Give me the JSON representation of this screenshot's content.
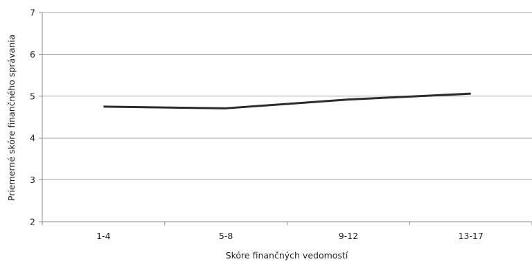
{
  "chart_data": {
    "type": "line",
    "title": "",
    "xlabel": "Skóre finančných vedomostí",
    "ylabel": "Priemerné skóre finančného správania",
    "categories": [
      "1-4",
      "5-8",
      "9-12",
      "13-17"
    ],
    "series": [
      {
        "values": [
          4.75,
          4.71,
          4.92,
          5.06
        ]
      }
    ],
    "ylim": [
      2,
      7
    ],
    "yticks": [
      "2",
      "3",
      "4",
      "5",
      "6",
      "7"
    ],
    "grid": "horizontal",
    "legend": "none",
    "colors": {
      "line": "#2b2b2b",
      "grid": "#a6a6a6",
      "axis": "#8c8c8c",
      "text": "#222222"
    }
  }
}
